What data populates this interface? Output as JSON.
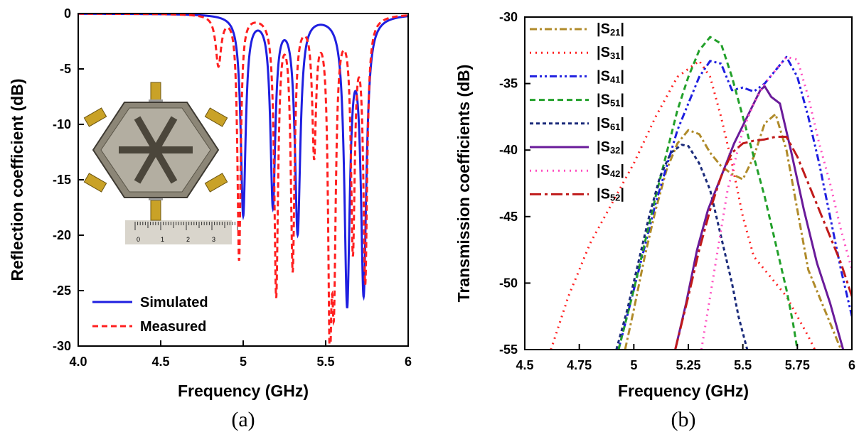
{
  "chart_data": [
    {
      "panel_label": "(a)",
      "type": "line",
      "xlabel": "Frequency (GHz)",
      "ylabel": "Reflection coefficient (dB)",
      "xlim": [
        4.0,
        6.0
      ],
      "ylim": [
        -30,
        0
      ],
      "xticks": [
        4.0,
        4.5,
        5.0,
        5.5,
        6.0
      ],
      "xtick_labels": [
        "4.0",
        "4.5",
        "5",
        "5.5",
        "6"
      ],
      "yticks": [
        0,
        -5,
        -10,
        -15,
        -20,
        -25,
        -30
      ],
      "ytick_labels": [
        "0",
        "-5",
        "-10",
        "-15",
        "-20",
        "-25",
        "-30"
      ],
      "grid": false,
      "legend_position": "bottom-left",
      "inset": "photo-of-hexagonal-six-port-antenna-with-ruler",
      "ruler_labels": [
        "0",
        "1",
        "2",
        "3"
      ],
      "series": [
        {
          "name": "Simulated",
          "color": "#1f1fe0",
          "style": "solid",
          "resonances": [
            {
              "f": 5.0,
              "depth": -18.0,
              "width": 0.018
            },
            {
              "f": 5.18,
              "depth": -17.0,
              "width": 0.018
            },
            {
              "f": 5.33,
              "depth": -19.5,
              "width": 0.02
            },
            {
              "f": 5.63,
              "depth": -25.5,
              "width": 0.02
            },
            {
              "f": 5.73,
              "depth": -24.5,
              "width": 0.02
            }
          ]
        },
        {
          "name": "Measured",
          "color": "#ff2020",
          "style": "dashed",
          "resonances": [
            {
              "f": 4.85,
              "depth": -4.5,
              "width": 0.02
            },
            {
              "f": 4.975,
              "depth": -22.0,
              "width": 0.012
            },
            {
              "f": 5.2,
              "depth": -25.0,
              "width": 0.014
            },
            {
              "f": 5.3,
              "depth": -22.5,
              "width": 0.014
            },
            {
              "f": 5.43,
              "depth": -12.0,
              "width": 0.014
            },
            {
              "f": 5.525,
              "depth": -26.0,
              "width": 0.012
            },
            {
              "f": 5.55,
              "depth": -22.0,
              "width": 0.014
            },
            {
              "f": 5.665,
              "depth": -20.5,
              "width": 0.014
            },
            {
              "f": 5.74,
              "depth": -23.5,
              "width": 0.014
            }
          ]
        }
      ]
    },
    {
      "panel_label": "(b)",
      "type": "line",
      "xlabel": "Frequency (GHz)",
      "ylabel": "Transmission coefficients (dB)",
      "xlim": [
        4.5,
        6.0
      ],
      "ylim": [
        -55,
        -30
      ],
      "xticks": [
        4.5,
        4.75,
        5.0,
        5.25,
        5.5,
        5.75,
        6.0
      ],
      "xtick_labels": [
        "4.5",
        "4.75",
        "5",
        "5.25",
        "5.5",
        "5.75",
        "6"
      ],
      "yticks": [
        -30,
        -35,
        -40,
        -45,
        -50,
        -55
      ],
      "ytick_labels": [
        "-30",
        "-35",
        "-40",
        "-45",
        "-50",
        "-55"
      ],
      "grid": false,
      "legend_position": "top-left",
      "series": [
        {
          "label": "|S",
          "sub": "21",
          "label_end": "|",
          "color": "#b08b2a",
          "style": "dashdot",
          "x": [
            4.96,
            5.0,
            5.05,
            5.1,
            5.15,
            5.2,
            5.25,
            5.3,
            5.35,
            5.4,
            5.45,
            5.5,
            5.55,
            5.6,
            5.65,
            5.7,
            5.75,
            5.8,
            5.85,
            5.9,
            5.95
          ],
          "y": [
            -55,
            -52,
            -48,
            -44.5,
            -41.5,
            -39.5,
            -38.5,
            -38.8,
            -40.2,
            -41.2,
            -41.8,
            -42.2,
            -40.5,
            -38.0,
            -37.3,
            -40.0,
            -44.5,
            -49.0,
            -51.0,
            -53.0,
            -55
          ]
        },
        {
          "label": "|S",
          "sub": "31",
          "label_end": "|",
          "color": "#ff2020",
          "style": "dotted",
          "x": [
            4.62,
            4.7,
            4.8,
            4.9,
            5.0,
            5.1,
            5.2,
            5.3,
            5.35,
            5.4,
            5.45,
            5.5,
            5.55,
            5.6,
            5.65,
            5.7,
            5.75,
            5.8,
            5.83
          ],
          "y": [
            -55,
            -51,
            -47,
            -44,
            -41,
            -37.5,
            -34.5,
            -33.3,
            -34.5,
            -37.5,
            -41.0,
            -45.0,
            -48.0,
            -49.0,
            -50.0,
            -51.0,
            -52.5,
            -54.0,
            -55
          ]
        },
        {
          "label": "|S",
          "sub": "41",
          "label_end": "|",
          "color": "#1f1fe0",
          "style": "dashdotdot",
          "x": [
            4.93,
            5.0,
            5.1,
            5.2,
            5.3,
            5.35,
            5.4,
            5.45,
            5.5,
            5.55,
            5.6,
            5.65,
            5.7,
            5.75,
            5.8,
            5.85,
            5.9,
            5.95,
            6.0
          ],
          "y": [
            -55,
            -50.5,
            -44,
            -38.5,
            -34.5,
            -33.3,
            -33.5,
            -35.5,
            -35.3,
            -35.6,
            -35.0,
            -34.0,
            -33.0,
            -34.5,
            -37.5,
            -41.0,
            -45.0,
            -49.0,
            -52.5
          ]
        },
        {
          "label": "|S",
          "sub": "51",
          "label_end": "|",
          "color": "#22a02a",
          "style": "dashed",
          "x": [
            4.93,
            5.0,
            5.1,
            5.2,
            5.25,
            5.3,
            5.35,
            5.4,
            5.45,
            5.5,
            5.55,
            5.6,
            5.65,
            5.7,
            5.73,
            5.75
          ],
          "y": [
            -55,
            -50.5,
            -43.5,
            -37.0,
            -34.5,
            -32.5,
            -31.5,
            -32.0,
            -34.5,
            -37.5,
            -40.5,
            -43.5,
            -47.0,
            -50.5,
            -53.0,
            -55
          ]
        },
        {
          "label": "|S",
          "sub": "61",
          "label_end": "|",
          "color": "#1a2a7a",
          "style": "shortdash",
          "x": [
            4.92,
            4.97,
            5.02,
            5.07,
            5.12,
            5.17,
            5.22,
            5.25,
            5.3,
            5.35,
            5.4,
            5.45,
            5.48,
            5.52
          ],
          "y": [
            -55,
            -52.0,
            -48.5,
            -45.0,
            -42.0,
            -40.2,
            -39.6,
            -39.7,
            -41.0,
            -43.0,
            -46.5,
            -50.0,
            -52.5,
            -55
          ]
        },
        {
          "label": "|S",
          "sub": "32",
          "label_end": "|",
          "color": "#6a1b9a",
          "style": "solid",
          "x": [
            5.19,
            5.24,
            5.29,
            5.34,
            5.4,
            5.46,
            5.52,
            5.58,
            5.6,
            5.63,
            5.67,
            5.72,
            5.78,
            5.84,
            5.9,
            5.96
          ],
          "y": [
            -55,
            -51.5,
            -47.5,
            -44.5,
            -42.0,
            -39.5,
            -37.5,
            -35.5,
            -35.2,
            -36.0,
            -36.5,
            -40.0,
            -44.5,
            -48.5,
            -51.5,
            -55
          ]
        },
        {
          "label": "|S",
          "sub": "42",
          "label_end": "|",
          "color": "#ff4fc0",
          "style": "dotted",
          "x": [
            5.31,
            5.37,
            5.43,
            5.5,
            5.55,
            5.6,
            5.65,
            5.7,
            5.75,
            5.8,
            5.85,
            5.9,
            5.95,
            6.0
          ],
          "y": [
            -55,
            -49.0,
            -43.0,
            -38.5,
            -36.5,
            -35.0,
            -34.0,
            -33.0,
            -33.2,
            -36.0,
            -39.5,
            -42.5,
            -46.0,
            -49.0
          ]
        },
        {
          "label": "|S",
          "sub": "52",
          "label_end": "|",
          "color": "#c01a1a",
          "style": "longdashdot",
          "x": [
            5.19,
            5.25,
            5.3,
            5.35,
            5.4,
            5.45,
            5.5,
            5.55,
            5.6,
            5.65,
            5.7,
            5.75,
            5.8,
            5.85,
            5.9,
            5.95,
            6.0
          ],
          "y": [
            -55,
            -51.0,
            -47.5,
            -44.5,
            -42.0,
            -40.2,
            -39.5,
            -39.3,
            -39.2,
            -39.0,
            -39.0,
            -40.5,
            -42.5,
            -44.5,
            -46.5,
            -48.5,
            -51.0
          ]
        }
      ]
    }
  ]
}
